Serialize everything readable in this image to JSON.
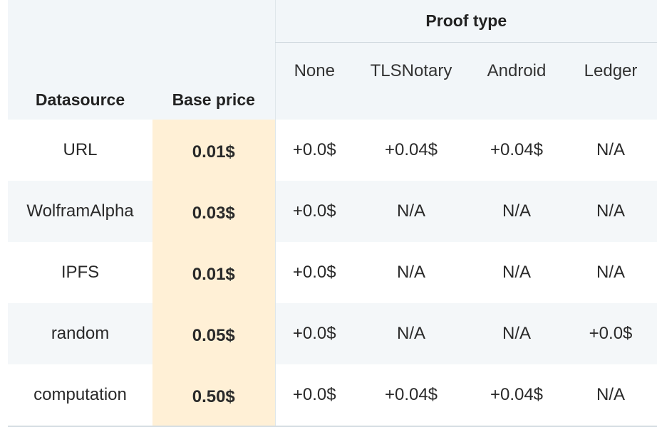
{
  "header": {
    "datasource": "Datasource",
    "base_price": "Base price",
    "proof_type": "Proof type",
    "proof_columns": [
      "None",
      "TLSNotary",
      "Android",
      "Ledger"
    ]
  },
  "rows": [
    {
      "datasource": "URL",
      "base_price": "0.01$",
      "proofs": [
        "+0.0$",
        "+0.04$",
        "+0.04$",
        "N/A"
      ]
    },
    {
      "datasource": "WolframAlpha",
      "base_price": "0.03$",
      "proofs": [
        "+0.0$",
        "N/A",
        "N/A",
        "N/A"
      ]
    },
    {
      "datasource": "IPFS",
      "base_price": "0.01$",
      "proofs": [
        "+0.0$",
        "N/A",
        "N/A",
        "N/A"
      ]
    },
    {
      "datasource": "random",
      "base_price": "0.05$",
      "proofs": [
        "+0.0$",
        "N/A",
        "N/A",
        "+0.0$"
      ]
    },
    {
      "datasource": "computation",
      "base_price": "0.50$",
      "proofs": [
        "+0.0$",
        "+0.04$",
        "+0.04$",
        "N/A"
      ]
    }
  ],
  "colors": {
    "header_bg": "#f2f6f9",
    "base_price_highlight": "#fff0d6",
    "stripe": "#f4f7f9"
  }
}
